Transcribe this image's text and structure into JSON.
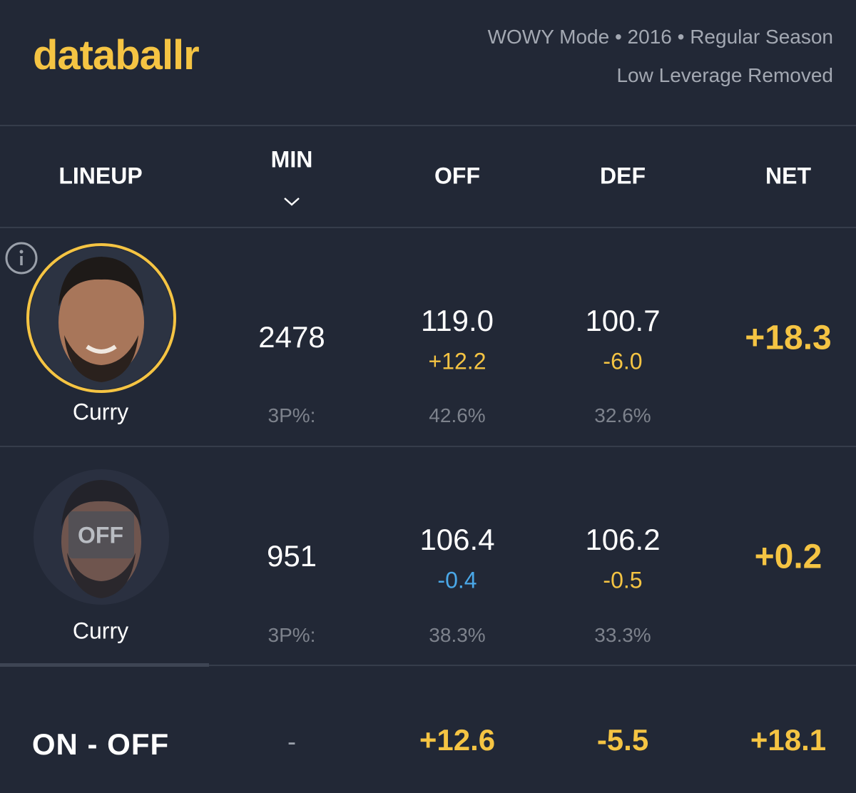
{
  "header": {
    "logo": "databallr",
    "subtitle": "WOWY Mode • 2016 • Regular Season",
    "note": "Low Leverage Removed"
  },
  "table": {
    "columns": [
      "LINEUP",
      "MIN",
      "OFF",
      "DEF",
      "NET"
    ],
    "rows": [
      {
        "player": "Curry",
        "min": "2478",
        "off": "119.0",
        "off_diff": "+12.2",
        "def": "100.7",
        "def_diff": "-6.0",
        "net": "+18.3",
        "shooting_label": "3P%:",
        "off_3p": "42.6%",
        "def_3p": "32.6%"
      },
      {
        "status": "OFF",
        "player": "Curry",
        "min": "951",
        "off": "106.4",
        "off_diff": "-0.4",
        "def": "106.2",
        "def_diff": "-0.5",
        "net": "+0.2",
        "shooting_label": "3P%:",
        "off_3p": "38.3%",
        "def_3p": "33.3%"
      }
    ],
    "summary": {
      "label": "ON - OFF",
      "min": "-",
      "off": "+12.6",
      "def": "-5.5",
      "net": "+18.1"
    }
  }
}
